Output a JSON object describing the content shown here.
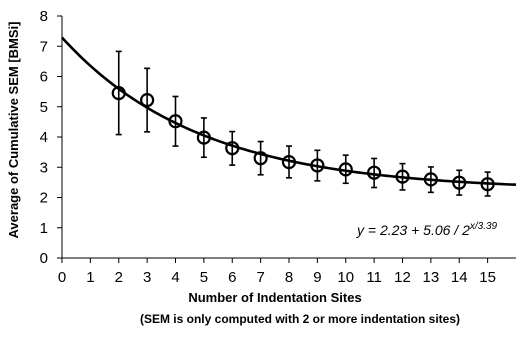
{
  "chart_data": {
    "type": "scatter",
    "xlabel": "Number of Indentation Sites",
    "xlabel_note": "(SEM is only computed with 2 or more indentation sites)",
    "ylabel": "Average of Cumulative SEM [BMSi]",
    "xlim": [
      0,
      16
    ],
    "ylim": [
      0,
      8
    ],
    "x_ticks": [
      "0",
      "1",
      "2",
      "3",
      "4",
      "5",
      "6",
      "7",
      "8",
      "9",
      "10",
      "11",
      "12",
      "13",
      "14",
      "15"
    ],
    "y_ticks": [
      "0",
      "1",
      "2",
      "3",
      "4",
      "5",
      "6",
      "7",
      "8"
    ],
    "grid": false,
    "marker": "open-circle",
    "series": [
      {
        "x": [
          2,
          3,
          4,
          5,
          6,
          7,
          8,
          9,
          10,
          11,
          12,
          13,
          14,
          15
        ],
        "y": [
          5.45,
          5.22,
          4.52,
          3.98,
          3.63,
          3.3,
          3.17,
          3.06,
          2.93,
          2.82,
          2.69,
          2.6,
          2.49,
          2.44
        ],
        "err_low": [
          4.08,
          4.17,
          3.7,
          3.33,
          3.07,
          2.75,
          2.65,
          2.55,
          2.47,
          2.33,
          2.25,
          2.17,
          2.08,
          2.05
        ],
        "err_high": [
          6.83,
          6.27,
          5.34,
          4.63,
          4.18,
          3.85,
          3.7,
          3.56,
          3.4,
          3.29,
          3.12,
          3.01,
          2.9,
          2.84
        ]
      }
    ],
    "fit_curve": {
      "a": 2.23,
      "b": 5.06,
      "c": 3.39,
      "x_range": [
        0,
        16
      ]
    },
    "equation_label": {
      "prefix": "y = 2.23 + 5.06 / 2",
      "exponent": "x/3.39"
    }
  }
}
